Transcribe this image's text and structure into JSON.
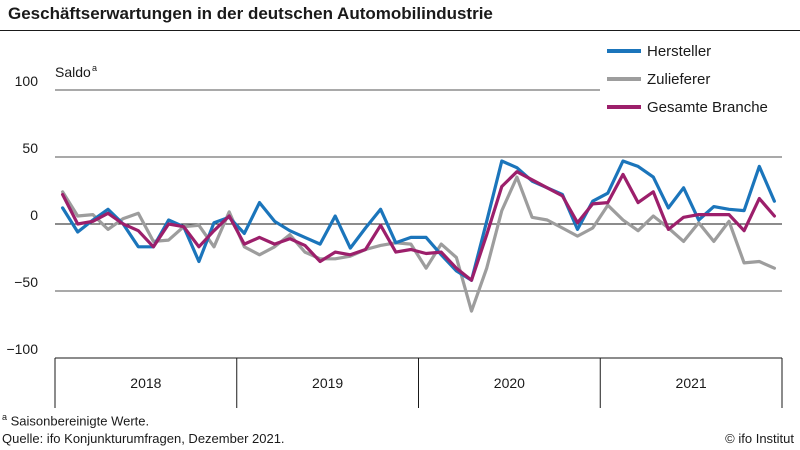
{
  "title": "Geschäftserwartungen in der deutschen Automobilindustrie",
  "footnote": {
    "marker": "a",
    "text": " Saisonbereinigte Werte."
  },
  "source": "Quelle: ifo Konjunkturumfragen, Dezember 2021.",
  "copyright": "© ifo Institut",
  "chart_data": {
    "type": "line",
    "ylabel": "Saldo",
    "ylabel_sup": "a",
    "ylim": [
      -100,
      100
    ],
    "yticks": [
      100,
      50,
      0,
      -50,
      -100
    ],
    "gridlines": "horizontal",
    "legend_position": "top-right",
    "x_start": "2018-01",
    "x_end": "2021-12",
    "x_labels": [
      "2018",
      "2019",
      "2020",
      "2021"
    ],
    "series": [
      {
        "name": "Hersteller",
        "color": "#1b75bb",
        "values": [
          12,
          -6,
          3,
          11,
          0,
          -17,
          -17,
          3,
          -2,
          -28,
          1,
          5,
          -7,
          16,
          2,
          -5,
          -10,
          -15,
          6,
          -18,
          -3,
          11,
          -14,
          -10,
          -10,
          -23,
          -35,
          -42,
          2,
          47,
          42,
          32,
          27,
          22,
          -4,
          17,
          23,
          47,
          43,
          35,
          12,
          27,
          3,
          13,
          11,
          10,
          43,
          17
        ]
      },
      {
        "name": "Zulieferer",
        "color": "#9d9d9d",
        "values": [
          24,
          6,
          7,
          -4,
          4,
          8,
          -13,
          -12,
          -2,
          -1,
          -17,
          9,
          -17,
          -23,
          -17,
          -8,
          -21,
          -26,
          -26,
          -24,
          -19,
          -16,
          -14,
          -15,
          -33,
          -15,
          -25,
          -65,
          -33,
          10,
          35,
          5,
          3,
          -3,
          -9,
          -3,
          14,
          3,
          -5,
          6,
          -3,
          -13,
          1,
          -13,
          2,
          -29,
          -28,
          -33
        ]
      },
      {
        "name": "Gesamte Branche",
        "color": "#9c1f6b",
        "values": [
          22,
          0,
          2,
          8,
          0,
          -5,
          -17,
          0,
          -2,
          -17,
          -5,
          6,
          -15,
          -10,
          -15,
          -11,
          -16,
          -28,
          -21,
          -23,
          -19,
          -1,
          -21,
          -19,
          -22,
          -21,
          -33,
          -42,
          -8,
          28,
          39,
          33,
          27,
          21,
          1,
          15,
          16,
          37,
          16,
          24,
          -4,
          5,
          7,
          7,
          7,
          -5,
          19,
          6
        ]
      }
    ]
  }
}
